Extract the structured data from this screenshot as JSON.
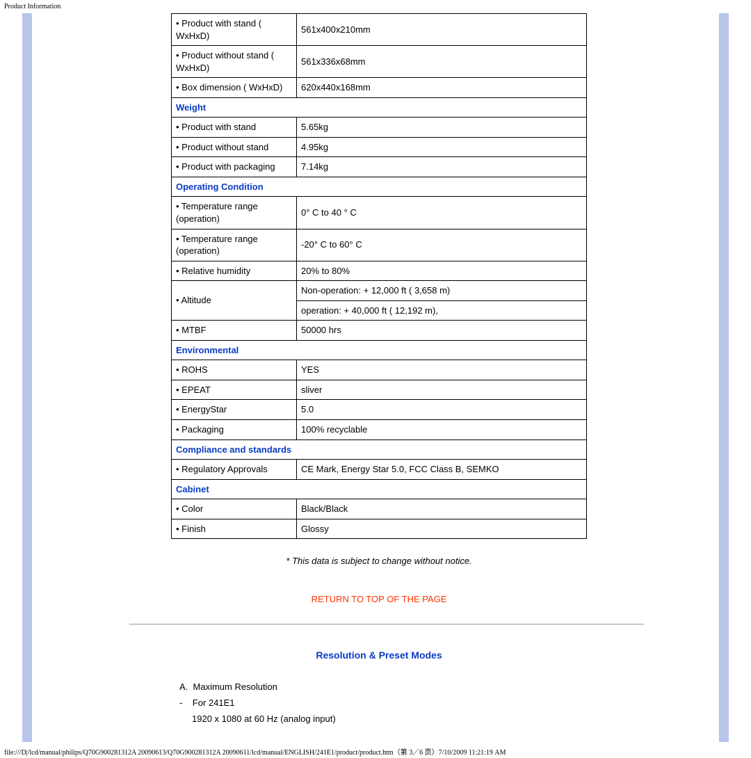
{
  "header_text": "Product Information",
  "colors": {
    "section_head": "#0a3cc4",
    "link_red": "#ff3300",
    "sidebar": "#b8c4e8",
    "border": "#000000"
  },
  "table": {
    "rows": [
      {
        "type": "data",
        "label": "• Product with stand ( WxHxD)",
        "value": "561x400x210mm"
      },
      {
        "type": "data",
        "label": "• Product without stand ( WxHxD)",
        "value": "561x336x68mm"
      },
      {
        "type": "data",
        "label": "• Box dimension ( WxHxD)",
        "value": "620x440x168mm"
      },
      {
        "type": "section",
        "label": "Weight"
      },
      {
        "type": "data",
        "label": "• Product with stand",
        "value": "5.65kg"
      },
      {
        "type": "data",
        "label": "• Product without stand",
        "value": "4.95kg"
      },
      {
        "type": "data",
        "label": "• Product with packaging",
        "value": "7.14kg"
      },
      {
        "type": "section",
        "label": "Operating Condition"
      },
      {
        "type": "data",
        "label": "• Temperature range (operation)",
        "value": "0° C to 40 ° C"
      },
      {
        "type": "data",
        "label": "• Temperature range (operation)",
        "value": "-20° C to 60° C"
      },
      {
        "type": "data",
        "label": "• Relative humidity",
        "value": "20% to 80%"
      },
      {
        "type": "data-rowspan",
        "label": "• Altitude",
        "values": [
          "Non-operation: + 12,000 ft ( 3,658 m)",
          "operation: + 40,000 ft ( 12,192 m),"
        ]
      },
      {
        "type": "data",
        "label": "• MTBF",
        "value": "50000 hrs"
      },
      {
        "type": "section",
        "label": "Environmental"
      },
      {
        "type": "data",
        "label": "• ROHS",
        "value": "YES"
      },
      {
        "type": "data",
        "label": "• EPEAT",
        "value": "sliver"
      },
      {
        "type": "data",
        "label": "• EnergyStar",
        "value": "5.0"
      },
      {
        "type": "data",
        "label": "• Packaging",
        "value": "100% recyclable"
      },
      {
        "type": "section",
        "label": "Compliance and standards"
      },
      {
        "type": "data",
        "label": "• Regulatory Approvals",
        "value": "CE Mark, Energy Star 5.0, FCC Class B, SEMKO"
      },
      {
        "type": "section",
        "label": "Cabinet"
      },
      {
        "type": "data",
        "label": "• Color",
        "value": "Black/Black"
      },
      {
        "type": "data",
        "label": "• Finish",
        "value": "Glossy"
      }
    ]
  },
  "disclaimer": "* This data is subject to change without notice.",
  "return_link": "RETURN TO TOP OF THE PAGE",
  "section_title": "Resolution & Preset Modes",
  "resolution": {
    "line_a": "A.",
    "line_a_text": "Maximum Resolution",
    "line_dash": "-",
    "line_for": "For 241E1",
    "line_detail": "1920 x 1080 at 60 Hz (analog input)"
  },
  "footer_path": "file:///D|/lcd/manual/philips/Q70G900281312A 20090613/Q70G900281312A 20090611/lcd/manual/ENGLISH/241E1/product/product.htm（第 3／6 页）7/10/2009 11:21:19 AM"
}
